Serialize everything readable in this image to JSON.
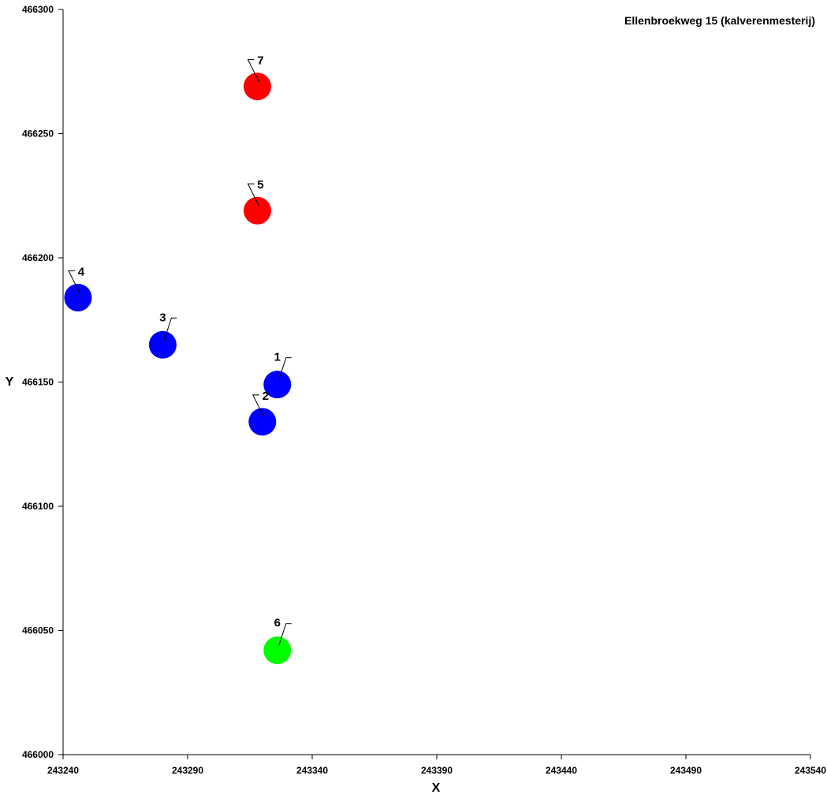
{
  "chart_data": {
    "type": "scatter",
    "title": "Ellenbroekweg 15 (kalverenmesterij)",
    "xlabel": "X",
    "ylabel": "Y",
    "xlim": [
      243240,
      243540
    ],
    "ylim": [
      466000,
      466300
    ],
    "x_ticks": [
      243240,
      243290,
      243340,
      243390,
      243440,
      243490,
      243540
    ],
    "y_ticks": [
      466000,
      466050,
      466100,
      466150,
      466200,
      466250,
      466300
    ],
    "grid": false,
    "legend": "none",
    "points": [
      {
        "label": "1",
        "x": 243326,
        "y": 466149,
        "color": "#0000ff",
        "label_side": "right"
      },
      {
        "label": "2",
        "x": 243320,
        "y": 466134,
        "color": "#0000ff",
        "label_side": "left"
      },
      {
        "label": "3",
        "x": 243280,
        "y": 466165,
        "color": "#0000ff",
        "label_side": "right"
      },
      {
        "label": "4",
        "x": 243246,
        "y": 466184,
        "color": "#0000ff",
        "label_side": "left"
      },
      {
        "label": "5",
        "x": 243318,
        "y": 466219,
        "color": "#ff0000",
        "label_side": "left"
      },
      {
        "label": "6",
        "x": 243326,
        "y": 466042,
        "color": "#00ff00",
        "label_side": "right"
      },
      {
        "label": "7",
        "x": 243318,
        "y": 466269,
        "color": "#ff0000",
        "label_side": "left"
      }
    ]
  }
}
